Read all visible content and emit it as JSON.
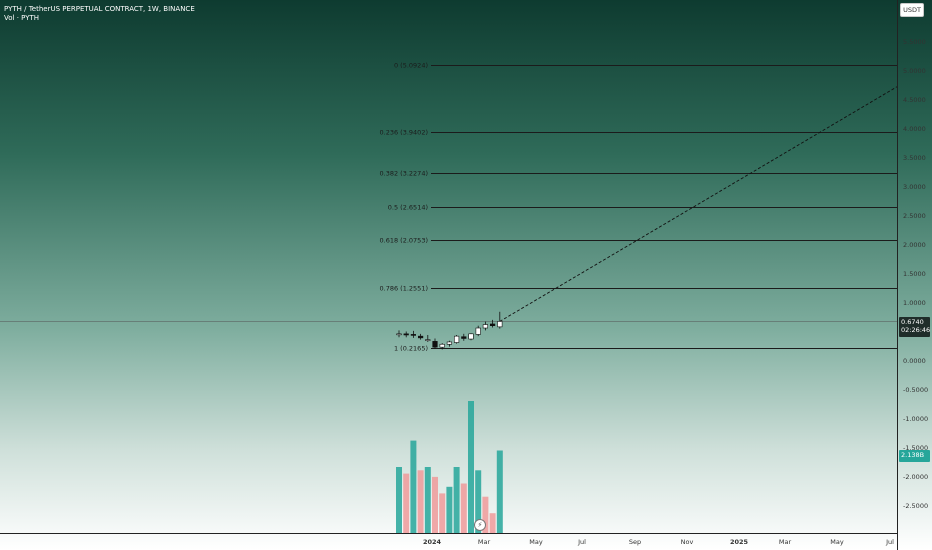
{
  "legend": {
    "symbol": "PYTH / TetherUS PERPETUAL CONTRACT, 1W, BINANCE",
    "volume": "Vol · PYTH"
  },
  "currency": "USDT",
  "last_price": "0.6740",
  "countdown": "02:26:46",
  "volume_value": "2.138B",
  "icons": {
    "replay": "lightning-icon"
  },
  "colors": {
    "up": "#26a69a",
    "down": "#ef9a9a",
    "fib_line": "#1b1b1b",
    "candle_up": "#ffffff",
    "candle_down": "#111111"
  },
  "chart_data": {
    "type": "candlestick",
    "y_axis": {
      "ticks": [
        "5.5000",
        "5.0000",
        "4.5000",
        "4.0000",
        "3.5000",
        "3.0000",
        "2.5000",
        "2.0000",
        "1.5000",
        "1.0000",
        "0.5000",
        "0.0000",
        "-0.5000",
        "-1.0000",
        "-1.5000",
        "-2.0000",
        "-2.5000"
      ],
      "range": [
        -2.85,
        5.9
      ]
    },
    "x_axis": {
      "ticks": [
        "2024",
        "Mar",
        "May",
        "Jul",
        "Sep",
        "Nov",
        "2025",
        "Mar",
        "May",
        "Jul"
      ]
    },
    "fib_levels": [
      {
        "ratio": "0",
        "label": "0 (5.0924)",
        "value": 5.0924
      },
      {
        "ratio": "0.236",
        "label": "0.236 (3.9402)",
        "value": 3.9402
      },
      {
        "ratio": "0.382",
        "label": "0.382 (3.2274)",
        "value": 3.2274
      },
      {
        "ratio": "0.5",
        "label": "0.5 (2.6514)",
        "value": 2.6514
      },
      {
        "ratio": "0.618",
        "label": "0.618 (2.0753)",
        "value": 2.0753
      },
      {
        "ratio": "0.786",
        "label": "0.786 (1.2551)",
        "value": 1.2551
      },
      {
        "ratio": "1",
        "label": "1 (0.2165)",
        "value": 0.2165
      }
    ],
    "candles": [
      {
        "o": 0.46,
        "h": 0.52,
        "l": 0.4,
        "c": 0.46
      },
      {
        "o": 0.46,
        "h": 0.5,
        "l": 0.4,
        "c": 0.44
      },
      {
        "o": 0.45,
        "h": 0.51,
        "l": 0.39,
        "c": 0.44
      },
      {
        "o": 0.42,
        "h": 0.46,
        "l": 0.36,
        "c": 0.39
      },
      {
        "o": 0.36,
        "h": 0.44,
        "l": 0.32,
        "c": 0.36
      },
      {
        "o": 0.33,
        "h": 0.38,
        "l": 0.2,
        "c": 0.23
      },
      {
        "o": 0.23,
        "h": 0.3,
        "l": 0.19,
        "c": 0.28
      },
      {
        "o": 0.28,
        "h": 0.34,
        "l": 0.24,
        "c": 0.32
      },
      {
        "o": 0.31,
        "h": 0.44,
        "l": 0.29,
        "c": 0.42
      },
      {
        "o": 0.41,
        "h": 0.46,
        "l": 0.34,
        "c": 0.38
      },
      {
        "o": 0.37,
        "h": 0.47,
        "l": 0.35,
        "c": 0.46
      },
      {
        "o": 0.45,
        "h": 0.6,
        "l": 0.42,
        "c": 0.56
      },
      {
        "o": 0.56,
        "h": 0.67,
        "l": 0.52,
        "c": 0.62
      },
      {
        "o": 0.63,
        "h": 0.7,
        "l": 0.57,
        "c": 0.6
      },
      {
        "o": 0.58,
        "h": 0.84,
        "l": 0.55,
        "c": 0.674
      }
    ],
    "volume": [
      1.0,
      0.9,
      1.4,
      0.95,
      1.0,
      0.85,
      0.6,
      0.7,
      1.0,
      0.75,
      2.0,
      0.95,
      0.55,
      0.3,
      1.25
    ],
    "volume_up": [
      true,
      false,
      true,
      false,
      true,
      false,
      false,
      true,
      true,
      false,
      true,
      true,
      false,
      false,
      true
    ],
    "trend_line": {
      "from": [
        14,
        0.674
      ],
      "to_value": 4.72
    },
    "last_price_value": 0.674
  }
}
